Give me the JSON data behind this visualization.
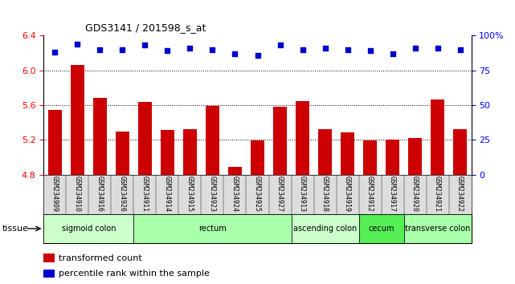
{
  "title": "GDS3141 / 201598_s_at",
  "samples": [
    "GSM234909",
    "GSM234910",
    "GSM234916",
    "GSM234926",
    "GSM234911",
    "GSM234914",
    "GSM234915",
    "GSM234923",
    "GSM234924",
    "GSM234925",
    "GSM234927",
    "GSM234913",
    "GSM234918",
    "GSM234919",
    "GSM234912",
    "GSM234917",
    "GSM234920",
    "GSM234921",
    "GSM234922"
  ],
  "bar_values": [
    5.54,
    6.06,
    5.68,
    5.3,
    5.64,
    5.31,
    5.32,
    5.59,
    4.89,
    5.19,
    5.58,
    5.65,
    5.32,
    5.29,
    5.19,
    5.2,
    5.22,
    5.66,
    5.32
  ],
  "percentile_values": [
    88,
    94,
    90,
    90,
    93,
    89,
    91,
    90,
    87,
    86,
    93,
    90,
    91,
    90,
    89,
    87,
    91,
    91,
    90
  ],
  "bar_color": "#cc0000",
  "percentile_color": "#0000cc",
  "ylim_left": [
    4.8,
    6.4
  ],
  "ylim_right": [
    0,
    100
  ],
  "yticks_left": [
    4.8,
    5.2,
    5.6,
    6.0,
    6.4
  ],
  "yticks_right": [
    0,
    25,
    50,
    75,
    100
  ],
  "ytick_labels_right": [
    "0",
    "25",
    "50",
    "75",
    "100%"
  ],
  "grid_values": [
    5.2,
    5.6,
    6.0
  ],
  "tissue_groups": [
    {
      "label": "sigmoid colon",
      "start": 0,
      "end": 4,
      "color": "#ccffcc"
    },
    {
      "label": "rectum",
      "start": 4,
      "end": 11,
      "color": "#aaffaa"
    },
    {
      "label": "ascending colon",
      "start": 11,
      "end": 14,
      "color": "#ccffcc"
    },
    {
      "label": "cecum",
      "start": 14,
      "end": 16,
      "color": "#55ee55"
    },
    {
      "label": "transverse colon",
      "start": 16,
      "end": 19,
      "color": "#aaffaa"
    }
  ],
  "tissue_label": "tissue",
  "legend_bar_label": "transformed count",
  "legend_pct_label": "percentile rank within the sample",
  "label_bg_color": "#dddddd"
}
